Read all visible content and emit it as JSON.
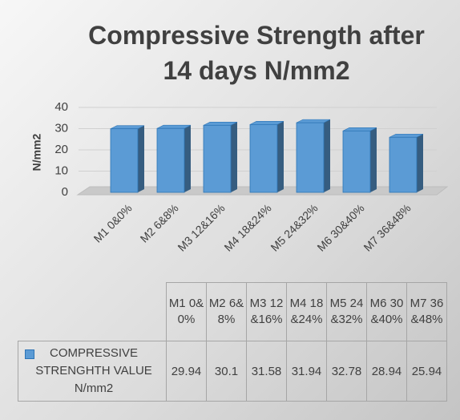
{
  "chart_data": {
    "type": "bar",
    "title": "Compressive Strength after 14 days N/mm2",
    "ylabel": "N/mm2",
    "categories": [
      "M1 0&0%",
      "M2 6&8%",
      "M3 12&16%",
      "M4 18&24%",
      "M5 24&32%",
      "M6 30&40%",
      "M7 36&48%"
    ],
    "series": [
      {
        "name": "COMPRESSIVE STRENGHTH VALUE N/mm2",
        "color": "#5b9bd5",
        "values": [
          29.94,
          30.1,
          31.58,
          31.94,
          32.78,
          28.94,
          25.94
        ]
      }
    ],
    "ylim": [
      0,
      40
    ],
    "yticks": [
      0,
      10,
      20,
      30,
      40
    ],
    "grid": true,
    "data_table": true
  }
}
